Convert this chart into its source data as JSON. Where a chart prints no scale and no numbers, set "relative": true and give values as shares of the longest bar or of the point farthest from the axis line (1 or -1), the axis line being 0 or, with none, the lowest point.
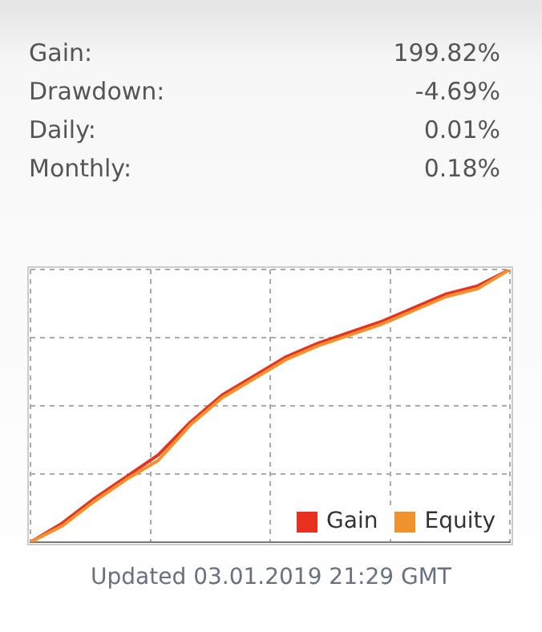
{
  "chart_data": {
    "type": "line",
    "relative": true,
    "categories": [
      null,
      null,
      null,
      null,
      null,
      null,
      null,
      null,
      null,
      null,
      null,
      null,
      null,
      null,
      null,
      null
    ],
    "series": [
      {
        "name": "Equity",
        "color": "#f0922e",
        "values": [
          0,
          0.06,
          0.15,
          0.23,
          0.3,
          0.43,
          0.53,
          0.6,
          0.67,
          0.72,
          0.76,
          0.8,
          0.85,
          0.9,
          0.93,
          1
        ]
      },
      {
        "name": "Gain",
        "color": "#e8321f",
        "values": [
          0,
          0.07,
          0.16,
          0.24,
          0.32,
          0.44,
          0.54,
          0.61,
          0.68,
          0.73,
          0.77,
          0.81,
          0.86,
          0.91,
          0.94,
          1
        ]
      }
    ],
    "grid": true,
    "legend": "bottom right",
    "marker": "none",
    "line_style": "solid",
    "annotations": [
      "Gain:",
      "199.82%",
      "Drawdown:",
      "-4.69%",
      "Daily:",
      "0.01%",
      "Monthly:",
      "0.18%",
      "Updated 03.01.2019 21:29 GMT"
    ]
  }
}
